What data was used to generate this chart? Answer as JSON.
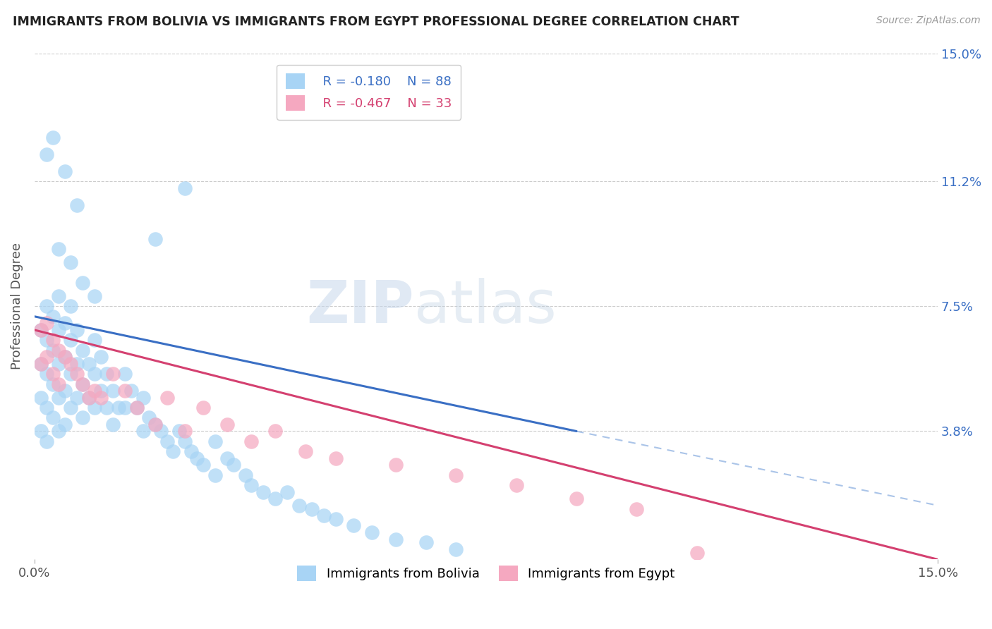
{
  "title": "IMMIGRANTS FROM BOLIVIA VS IMMIGRANTS FROM EGYPT PROFESSIONAL DEGREE CORRELATION CHART",
  "source": "Source: ZipAtlas.com",
  "ylabel": "Professional Degree",
  "legend_label1": "Immigrants from Bolivia",
  "legend_label2": "Immigrants from Egypt",
  "R1": -0.18,
  "N1": 88,
  "R2": -0.467,
  "N2": 33,
  "color_bolivia": "#a8d4f5",
  "color_egypt": "#f5a8c0",
  "line_color_bolivia": "#3a6fc4",
  "line_color_egypt": "#d44070",
  "line_color_dashed": "#aac4e8",
  "xlim": [
    0.0,
    0.15
  ],
  "ylim": [
    0.0,
    0.15
  ],
  "yticks": [
    0.038,
    0.075,
    0.112,
    0.15
  ],
  "ytick_labels": [
    "3.8%",
    "7.5%",
    "11.2%",
    "15.0%"
  ],
  "xtick_labels": [
    "0.0%",
    "15.0%"
  ],
  "watermark_zip": "ZIP",
  "watermark_atlas": "atlas",
  "background_color": "#ffffff",
  "bolivia_x": [
    0.001,
    0.001,
    0.001,
    0.001,
    0.002,
    0.002,
    0.002,
    0.002,
    0.002,
    0.003,
    0.003,
    0.003,
    0.003,
    0.004,
    0.004,
    0.004,
    0.004,
    0.004,
    0.005,
    0.005,
    0.005,
    0.005,
    0.006,
    0.006,
    0.006,
    0.006,
    0.007,
    0.007,
    0.007,
    0.008,
    0.008,
    0.008,
    0.009,
    0.009,
    0.01,
    0.01,
    0.01,
    0.011,
    0.011,
    0.012,
    0.012,
    0.013,
    0.013,
    0.014,
    0.015,
    0.015,
    0.016,
    0.017,
    0.018,
    0.018,
    0.019,
    0.02,
    0.021,
    0.022,
    0.023,
    0.024,
    0.025,
    0.026,
    0.027,
    0.028,
    0.03,
    0.03,
    0.032,
    0.033,
    0.035,
    0.036,
    0.038,
    0.04,
    0.042,
    0.044,
    0.046,
    0.048,
    0.05,
    0.053,
    0.056,
    0.06,
    0.065,
    0.07,
    0.02,
    0.025,
    0.003,
    0.005,
    0.007,
    0.002,
    0.004,
    0.006,
    0.008,
    0.01
  ],
  "bolivia_y": [
    0.068,
    0.058,
    0.048,
    0.038,
    0.075,
    0.065,
    0.055,
    0.045,
    0.035,
    0.072,
    0.062,
    0.052,
    0.042,
    0.078,
    0.068,
    0.058,
    0.048,
    0.038,
    0.07,
    0.06,
    0.05,
    0.04,
    0.075,
    0.065,
    0.055,
    0.045,
    0.068,
    0.058,
    0.048,
    0.062,
    0.052,
    0.042,
    0.058,
    0.048,
    0.065,
    0.055,
    0.045,
    0.06,
    0.05,
    0.055,
    0.045,
    0.05,
    0.04,
    0.045,
    0.055,
    0.045,
    0.05,
    0.045,
    0.048,
    0.038,
    0.042,
    0.04,
    0.038,
    0.035,
    0.032,
    0.038,
    0.035,
    0.032,
    0.03,
    0.028,
    0.035,
    0.025,
    0.03,
    0.028,
    0.025,
    0.022,
    0.02,
    0.018,
    0.02,
    0.016,
    0.015,
    0.013,
    0.012,
    0.01,
    0.008,
    0.006,
    0.005,
    0.003,
    0.095,
    0.11,
    0.125,
    0.115,
    0.105,
    0.12,
    0.092,
    0.088,
    0.082,
    0.078
  ],
  "egypt_x": [
    0.001,
    0.001,
    0.002,
    0.002,
    0.003,
    0.003,
    0.004,
    0.004,
    0.005,
    0.006,
    0.007,
    0.008,
    0.009,
    0.01,
    0.011,
    0.013,
    0.015,
    0.017,
    0.02,
    0.022,
    0.025,
    0.028,
    0.032,
    0.036,
    0.04,
    0.045,
    0.05,
    0.06,
    0.07,
    0.08,
    0.09,
    0.1,
    0.11
  ],
  "egypt_y": [
    0.068,
    0.058,
    0.07,
    0.06,
    0.065,
    0.055,
    0.062,
    0.052,
    0.06,
    0.058,
    0.055,
    0.052,
    0.048,
    0.05,
    0.048,
    0.055,
    0.05,
    0.045,
    0.04,
    0.048,
    0.038,
    0.045,
    0.04,
    0.035,
    0.038,
    0.032,
    0.03,
    0.028,
    0.025,
    0.022,
    0.018,
    0.015,
    0.002
  ],
  "blue_line_x0": 0.0,
  "blue_line_y0": 0.072,
  "blue_line_x1": 0.09,
  "blue_line_y1": 0.038,
  "pink_line_x0": 0.0,
  "pink_line_y0": 0.068,
  "pink_line_x1": 0.15,
  "pink_line_y1": 0.0,
  "dash_line_x0": 0.09,
  "dash_line_y0": 0.038,
  "dash_line_x1": 0.15,
  "dash_line_y1": 0.016
}
